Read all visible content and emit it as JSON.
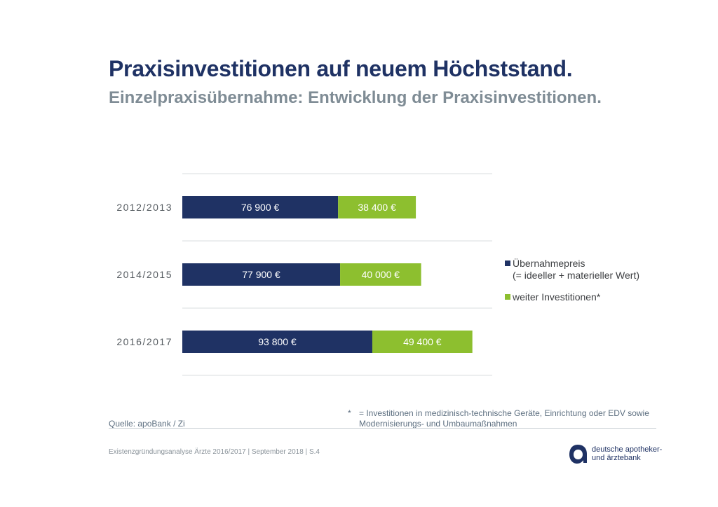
{
  "header": {
    "title": "Praxisinvestitionen auf neuem Höchststand.",
    "subtitle": "Einzelpraxisübernahme: Entwicklung der Praxisinvestitionen."
  },
  "chart_data": {
    "type": "bar",
    "orientation": "horizontal",
    "stacked": true,
    "categories": [
      "2012/2013",
      "2014/2015",
      "2016/2017"
    ],
    "series": [
      {
        "name": "Übernahmepreis",
        "values": [
          76900,
          77900,
          93800
        ],
        "labels": [
          "76 900 €",
          "77 900 €",
          "93 800 €"
        ],
        "color": "#1f3264"
      },
      {
        "name": "weiter Investitionen*",
        "values": [
          38400,
          40000,
          49400
        ],
        "labels": [
          "38 400 €",
          "40 000 €",
          "49 400 €"
        ],
        "color": "#8dbf2f"
      }
    ],
    "xlim": [
      0,
      153000
    ],
    "grid": true,
    "legend_position": "right"
  },
  "legend": {
    "items": [
      {
        "label": "Übernahmepreis",
        "note": "(= ideeller + materieller Wert)",
        "color": "#1f3264"
      },
      {
        "label": "weiter Investitionen*",
        "note": "",
        "color": "#8dbf2f"
      }
    ]
  },
  "footer": {
    "source": "Quelle: apoBank / Zi",
    "footnote_mark": "*",
    "footnote_line1": "= Investitionen in medizinisch-technische Geräte, Einrichtung oder EDV sowie",
    "footnote_line2": "Modernisierungs- und Umbaumaßnahmen",
    "meta": "Existenzgründungsanalyse Ärzte  2016/2017 | September 2018 | S.4",
    "brand_line1": "deutsche apotheker-",
    "brand_line2": "und ärztebank",
    "brand_color": "#1f3264"
  }
}
